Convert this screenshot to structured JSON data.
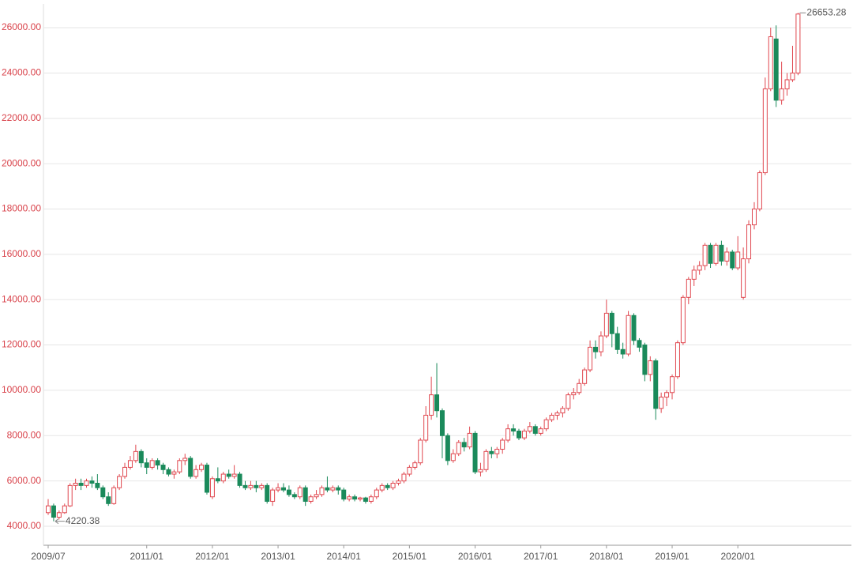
{
  "chart_data": {
    "type": "candlestick",
    "categories": [
      "2009/07",
      null,
      null,
      null,
      null,
      null,
      null,
      null,
      null,
      null,
      null,
      null,
      null,
      null,
      null,
      null,
      null,
      null,
      "2011/01",
      null,
      null,
      null,
      null,
      null,
      null,
      null,
      null,
      null,
      null,
      null,
      "2012/01",
      null,
      null,
      null,
      null,
      null,
      null,
      null,
      null,
      null,
      null,
      null,
      "2013/01",
      null,
      null,
      null,
      null,
      null,
      null,
      null,
      null,
      null,
      null,
      null,
      "2014/01",
      null,
      null,
      null,
      null,
      null,
      null,
      null,
      null,
      null,
      null,
      null,
      "2015/01",
      null,
      null,
      null,
      null,
      null,
      null,
      null,
      null,
      null,
      null,
      null,
      "2016/01",
      null,
      null,
      null,
      null,
      null,
      null,
      null,
      null,
      null,
      null,
      null,
      "2017/01",
      null,
      null,
      null,
      null,
      null,
      null,
      null,
      null,
      null,
      null,
      null,
      "2018/01",
      null,
      null,
      null,
      null,
      null,
      null,
      null,
      null,
      null,
      null,
      null,
      "2019/01",
      null,
      null,
      null,
      null,
      null,
      null,
      null,
      null,
      null,
      null,
      null,
      "2020/01",
      null,
      null,
      null,
      null,
      null,
      null,
      null,
      null,
      null,
      null,
      null
    ],
    "open": [
      4600,
      4900,
      4400,
      4600,
      4900,
      5800,
      5900,
      5800,
      6000,
      5900,
      5700,
      5300,
      5000,
      5700,
      6200,
      6600,
      6900,
      7300,
      6800,
      6600,
      6900,
      6700,
      6500,
      6300,
      6400,
      6900,
      7000,
      6200,
      6500,
      6700,
      5300,
      6100,
      6000,
      6300,
      6200,
      6300,
      5800,
      5700,
      5800,
      5700,
      5800,
      5100,
      5600,
      5700,
      5600,
      5400,
      5300,
      5700,
      5100,
      5300,
      5400,
      5700,
      5600,
      5700,
      5600,
      5200,
      5300,
      5200,
      5250,
      5100,
      5300,
      5600,
      5800,
      5700,
      5900,
      6000,
      6300,
      6600,
      6800,
      7800,
      8900,
      9800,
      9100,
      8000,
      6900,
      7200,
      7700,
      7500,
      8100,
      6400,
      6500,
      7300,
      7200,
      7400,
      7800,
      8300,
      8200,
      7900,
      8200,
      8400,
      8100,
      8300,
      8700,
      8900,
      9000,
      9200,
      9800,
      9900,
      10300,
      10900,
      11900,
      11700,
      12400,
      13400,
      12500,
      11800,
      11600,
      13300,
      12200,
      12000,
      10700,
      11300,
      9200,
      9700,
      9900,
      10600,
      12100,
      14100,
      14900,
      15300,
      15500,
      16400,
      15600,
      16400,
      15700,
      16100,
      15400,
      14100,
      15800,
      17300,
      18000,
      19600,
      23300,
      25500,
      22800,
      23300,
      23700,
      24000
    ],
    "high": [
      5200,
      5000,
      4700,
      5000,
      5900,
      6100,
      6100,
      6100,
      6200,
      6300,
      5800,
      5500,
      5800,
      6300,
      6800,
      7100,
      7600,
      7400,
      7000,
      7000,
      7000,
      6800,
      6600,
      6500,
      7000,
      7200,
      7100,
      6700,
      6800,
      6800,
      6200,
      6600,
      6400,
      6500,
      6700,
      6400,
      6000,
      6000,
      6000,
      5900,
      5900,
      5700,
      5900,
      5900,
      5800,
      5500,
      5800,
      5800,
      5400,
      5600,
      5800,
      6200,
      5800,
      5800,
      5700,
      5400,
      5400,
      5300,
      5300,
      5400,
      5700,
      5900,
      5900,
      6000,
      6100,
      6400,
      6700,
      6900,
      7900,
      9300,
      10600,
      11200,
      9200,
      8100,
      7400,
      7800,
      7900,
      8400,
      8200,
      6800,
      7400,
      7500,
      7500,
      7900,
      8500,
      8500,
      8300,
      8300,
      8600,
      8500,
      8400,
      8800,
      9000,
      9100,
      9300,
      9900,
      10100,
      10500,
      11000,
      12200,
      12200,
      12600,
      14000,
      13500,
      12800,
      12100,
      13500,
      13400,
      12300,
      12100,
      11500,
      11400,
      9900,
      10000,
      10700,
      12200,
      14200,
      15000,
      15500,
      15700,
      16500,
      16500,
      16500,
      16600,
      16300,
      16200,
      16800,
      16300,
      17500,
      18300,
      19700,
      23800,
      26000,
      26100,
      24500,
      24000,
      25200,
      26653.28
    ],
    "low": [
      4500,
      4220.38,
      4300,
      4550,
      4850,
      5600,
      5600,
      5700,
      5700,
      5600,
      5200,
      4900,
      4950,
      5600,
      6100,
      6500,
      6800,
      6600,
      6300,
      6500,
      6500,
      6300,
      6200,
      6100,
      6300,
      6700,
      6100,
      6100,
      6400,
      5400,
      5200,
      5900,
      5900,
      6100,
      6100,
      5700,
      5600,
      5600,
      5500,
      5600,
      5000,
      4900,
      5500,
      5500,
      5300,
      5200,
      5200,
      4900,
      5000,
      5200,
      5300,
      5500,
      5500,
      5400,
      5100,
      5100,
      5100,
      5100,
      5000,
      5000,
      5200,
      5500,
      5600,
      5600,
      5800,
      5900,
      6200,
      6500,
      6700,
      7700,
      8700,
      8800,
      7000,
      6700,
      6800,
      7100,
      7300,
      7400,
      6300,
      6200,
      6400,
      7000,
      7000,
      7200,
      7700,
      8000,
      7800,
      7800,
      8100,
      8000,
      8000,
      8200,
      8600,
      8700,
      8800,
      9100,
      9600,
      9800,
      10200,
      10800,
      11400,
      11500,
      12300,
      11900,
      11600,
      11400,
      11500,
      12000,
      11700,
      10400,
      10400,
      8700,
      9000,
      9300,
      9600,
      10500,
      12000,
      13800,
      14600,
      15100,
      15300,
      15400,
      15500,
      15500,
      15500,
      15300,
      15300,
      14000,
      15600,
      17100,
      17900,
      19500,
      23200,
      22500,
      22600,
      23000,
      23600,
      23900
    ],
    "close": [
      4900,
      4400,
      4600,
      4900,
      5800,
      5900,
      5800,
      6000,
      5900,
      5700,
      5300,
      5000,
      5700,
      6200,
      6600,
      6900,
      7300,
      6800,
      6600,
      6900,
      6700,
      6500,
      6300,
      6400,
      6900,
      7000,
      6200,
      6500,
      6700,
      5500,
      6100,
      6000,
      6300,
      6200,
      6300,
      5800,
      5700,
      5800,
      5700,
      5800,
      5100,
      5600,
      5700,
      5600,
      5400,
      5300,
      5700,
      5100,
      5300,
      5400,
      5700,
      5600,
      5700,
      5600,
      5200,
      5300,
      5200,
      5250,
      5100,
      5300,
      5600,
      5800,
      5700,
      5900,
      6000,
      6300,
      6600,
      6800,
      7800,
      8900,
      9800,
      9100,
      8000,
      6900,
      7200,
      7700,
      7500,
      8100,
      6400,
      6500,
      7300,
      7200,
      7400,
      7800,
      8300,
      8200,
      7900,
      8200,
      8400,
      8100,
      8300,
      8700,
      8900,
      9000,
      9200,
      9800,
      9900,
      10300,
      10900,
      11900,
      11700,
      12400,
      13400,
      12500,
      11800,
      11600,
      13300,
      12200,
      11900,
      10700,
      11300,
      9200,
      9700,
      9900,
      10600,
      12100,
      14100,
      14900,
      15300,
      15500,
      16400,
      15600,
      16400,
      15700,
      16100,
      15400,
      16100,
      15800,
      17300,
      18000,
      19600,
      23300,
      25600,
      22800,
      23300,
      23700,
      24000,
      26600
    ],
    "up_color": "#e0474f",
    "down_color": "#1a8a5b",
    "ylim": [
      3163,
      27046
    ],
    "yticks": [
      {
        "value": 4000,
        "label": "4000.00"
      },
      {
        "value": 6000,
        "label": "6000.00"
      },
      {
        "value": 8000,
        "label": "8000.00"
      },
      {
        "value": 10000,
        "label": "10000.00"
      },
      {
        "value": 12000,
        "label": "12000.00"
      },
      {
        "value": 14000,
        "label": "14000.00"
      },
      {
        "value": 16000,
        "label": "16000.00"
      },
      {
        "value": 18000,
        "label": "18000.00"
      },
      {
        "value": 20000,
        "label": "20000.00"
      },
      {
        "value": 22000,
        "label": "22000.00"
      },
      {
        "value": 24000,
        "label": "24000.00"
      },
      {
        "value": 26000,
        "label": "26000.00"
      }
    ],
    "grid": true
  }
}
